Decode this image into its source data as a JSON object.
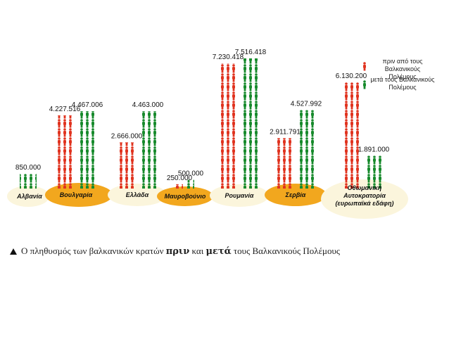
{
  "chart_data": {
    "type": "pictogram",
    "categories": [
      "Αλβανία",
      "Βουλγαρία",
      "Ελλάδα",
      "Μαυροβούνιο",
      "Ρουμανία",
      "Σερβία",
      "Οθωμανική Αυτοκρατορία (ευρωπαϊκά εδάφη)"
    ],
    "series": [
      {
        "name": "πριν από τους Βαλκανικούς Πολέμους",
        "color": "#e0331f",
        "values": [
          null,
          4227516,
          2666000,
          250000,
          7230418,
          2911791,
          6130200
        ],
        "value_labels": [
          null,
          "4.227.516",
          "2.666.000",
          "250.000",
          "7.230.418",
          "2.911.791",
          "6.130.200"
        ]
      },
      {
        "name": "μετά τους Βαλκανικούς Πολέμους",
        "color": "#178a2c",
        "values": [
          850000,
          4467006,
          4463000,
          500000,
          7516418,
          4527992,
          1891000
        ],
        "value_labels": [
          "850.000",
          "4.467.006",
          "4.463.000",
          "500.000",
          "7.516.418",
          "4.527.992",
          "1.891.000"
        ]
      }
    ],
    "caption": [
      "Ο πληθυσμός των βαλκανικών κρατών ",
      "πριν",
      " και ",
      "μετά",
      " τους Βαλκανικούς Πολέμους"
    ]
  }
}
